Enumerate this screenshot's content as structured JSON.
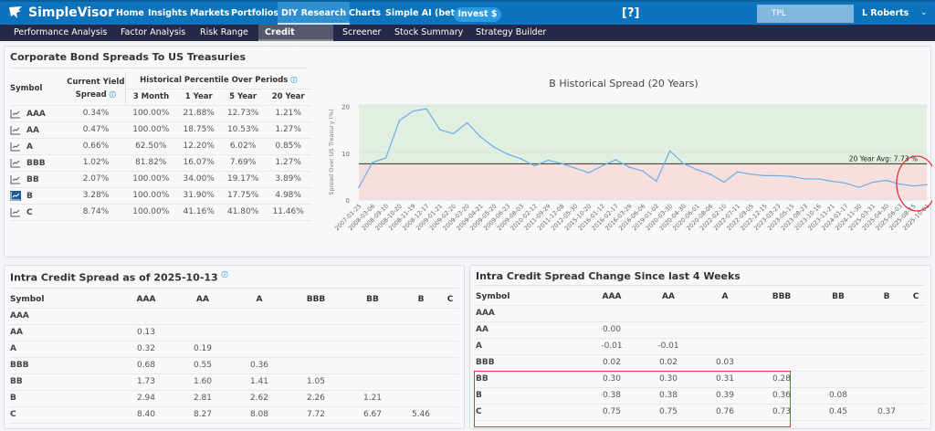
{
  "nav": {
    "brand": "SimpleVisor",
    "items": [
      "Home",
      "Insights",
      "Markets",
      "Portfolios",
      "DIY Research",
      "Charts",
      "Simple AI (beta)"
    ],
    "active": "DIY Research",
    "invest": "Invest $",
    "search_value": "TPL",
    "user": "L Roberts"
  },
  "subnav": {
    "items": [
      "Performance Analysis",
      "Factor Analysis",
      "Risk Range",
      "Credit Spreads",
      "Screener",
      "Stock Summary",
      "Strategy Builder"
    ],
    "active": "Credit Spreads"
  },
  "spreads": {
    "title": "Corporate Bond Spreads To US Treasuries",
    "headers": {
      "symbol": "Symbol",
      "current": "Current Yield Spread",
      "historical": "Historical Percentile Over Periods",
      "periods": [
        "3 Month",
        "1 Year",
        "5 Year",
        "20 Year"
      ]
    },
    "selected": "B",
    "rows": [
      {
        "symbol": "AAA",
        "current": "0.34%",
        "p": [
          "100.00%",
          "21.88%",
          "12.73%",
          "1.21%"
        ]
      },
      {
        "symbol": "AA",
        "current": "0.47%",
        "p": [
          "100.00%",
          "18.75%",
          "10.53%",
          "1.27%"
        ]
      },
      {
        "symbol": "A",
        "current": "0.66%",
        "p": [
          "62.50%",
          "12.20%",
          "6.02%",
          "0.85%"
        ]
      },
      {
        "symbol": "BBB",
        "current": "1.02%",
        "p": [
          "81.82%",
          "16.07%",
          "7.69%",
          "1.27%"
        ]
      },
      {
        "symbol": "BB",
        "current": "2.07%",
        "p": [
          "100.00%",
          "34.00%",
          "19.17%",
          "3.89%"
        ]
      },
      {
        "symbol": "B",
        "current": "3.28%",
        "p": [
          "100.00%",
          "31.90%",
          "17.75%",
          "4.98%"
        ]
      },
      {
        "symbol": "C",
        "current": "8.74%",
        "p": [
          "100.00%",
          "41.16%",
          "41.80%",
          "11.46%"
        ]
      }
    ]
  },
  "chart_data": {
    "type": "line",
    "title": "B Historical Spread (20 Years)",
    "ylabel": "Spread Over US Treasury (%)",
    "ylim": [
      0,
      20.5
    ],
    "yticks": [
      0,
      10,
      20
    ],
    "average": {
      "label": "20 Year Avg: 7.73 %",
      "value": 7.73
    },
    "bands": [
      {
        "from": 0,
        "to": 7.73,
        "color": "#f7dfde"
      },
      {
        "from": 7.73,
        "to": 20.5,
        "color": "#e1efe1"
      }
    ],
    "line_color": "#6aaee8",
    "x": [
      "2007-01-25",
      "2008-03-06",
      "2008-09-10",
      "2008-10-20",
      "2008-11-19",
      "2008-12-17",
      "2009-01-21",
      "2009-02-20",
      "2009-03-20",
      "2009-04-21",
      "2009-05-20",
      "2009-06-23",
      "2009-08-03",
      "2010-02-12",
      "2011-09-29",
      "2011-12-08",
      "2012-05-30",
      "2015-10-20",
      "2016-01-12",
      "2016-02-17",
      "2016-03-29",
      "2016-06-06",
      "2019-01-02",
      "2020-03-30",
      "2020-04-30",
      "2020-06-01",
      "2020-08-06",
      "2022-02-10",
      "2022-07-11",
      "2022-09-05",
      "2022-12-15",
      "2023-03-23",
      "2023-05-15",
      "2023-08-23",
      "2023-10-16",
      "2023-11-21",
      "2024-01-17",
      "2024-11-30",
      "2025-03-31",
      "2025-04-30",
      "2025-06-03",
      "2025-08-15",
      "2025-10-01"
    ],
    "series": [
      {
        "values": [
          2.7,
          8.0,
          9.0,
          17.0,
          19.0,
          19.5,
          15.0,
          14.2,
          16.5,
          13.5,
          11.3,
          9.8,
          8.8,
          7.3,
          8.5,
          7.8,
          6.8,
          5.8,
          7.3,
          8.6,
          7.0,
          6.2,
          4.0,
          10.5,
          7.8,
          6.5,
          5.5,
          3.8,
          6.0,
          5.5,
          5.2,
          5.2,
          5.0,
          4.5,
          4.5,
          4.0,
          3.6,
          2.7,
          3.8,
          4.2,
          3.4,
          3.0,
          3.28
        ]
      }
    ],
    "grid": true
  },
  "intra": {
    "title": "Intra Credit Spread as of 2025-10-13",
    "columns": [
      "Symbol",
      "AAA",
      "AA",
      "A",
      "BBB",
      "BB",
      "B",
      "C"
    ],
    "rows": [
      [
        "AAA",
        "",
        "",
        "",
        "",
        "",
        "",
        ""
      ],
      [
        "AA",
        "0.13",
        "",
        "",
        "",
        "",
        "",
        ""
      ],
      [
        "A",
        "0.32",
        "0.19",
        "",
        "",
        "",
        "",
        ""
      ],
      [
        "BBB",
        "0.68",
        "0.55",
        "0.36",
        "",
        "",
        "",
        ""
      ],
      [
        "BB",
        "1.73",
        "1.60",
        "1.41",
        "1.05",
        "",
        "",
        ""
      ],
      [
        "B",
        "2.94",
        "2.81",
        "2.62",
        "2.26",
        "1.21",
        "",
        ""
      ],
      [
        "C",
        "8.40",
        "8.27",
        "8.08",
        "7.72",
        "6.67",
        "5.46",
        ""
      ]
    ]
  },
  "change": {
    "title": "Intra Credit Spread Change Since last 4 Weeks",
    "columns": [
      "Symbol",
      "AAA",
      "AA",
      "A",
      "BBB",
      "BB",
      "B",
      "C"
    ],
    "rows": [
      [
        "AAA",
        "",
        "",
        "",
        "",
        "",
        "",
        ""
      ],
      [
        "AA",
        "0.00",
        "",
        "",
        "",
        "",
        "",
        ""
      ],
      [
        "A",
        "-0.01",
        "-0.01",
        "",
        "",
        "",
        "",
        ""
      ],
      [
        "BBB",
        "0.02",
        "0.02",
        "0.03",
        "",
        "",
        "",
        ""
      ],
      [
        "BB",
        "0.30",
        "0.30",
        "0.31",
        "0.28",
        "",
        "",
        ""
      ],
      [
        "B",
        "0.38",
        "0.38",
        "0.39",
        "0.36",
        "0.08",
        "",
        ""
      ],
      [
        "C",
        "0.75",
        "0.75",
        "0.76",
        "0.73",
        "0.45",
        "0.37",
        ""
      ]
    ]
  },
  "colors": {
    "nav": "#0b74bc",
    "subnav": "#262848",
    "highlight": "#e0333a"
  }
}
